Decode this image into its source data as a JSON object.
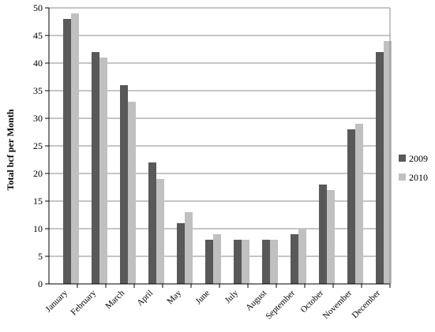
{
  "chart_data": {
    "type": "bar",
    "title": "",
    "xlabel": "",
    "ylabel": "Total bcf per Month",
    "ylim": [
      0,
      50
    ],
    "yticks": [
      0,
      5,
      10,
      15,
      20,
      25,
      30,
      35,
      40,
      45,
      50
    ],
    "grid": true,
    "legend_position": "right",
    "categories": [
      "January",
      "February",
      "March",
      "April",
      "May",
      "June",
      "July",
      "August",
      "September",
      "October",
      "November",
      "December"
    ],
    "series": [
      {
        "name": "2009",
        "color": "#595959",
        "values": [
          48,
          42,
          36,
          22,
          11,
          8,
          8,
          8,
          9,
          18,
          28,
          42
        ]
      },
      {
        "name": "2010",
        "color": "#c0c0c0",
        "values": [
          49,
          41,
          33,
          19,
          13,
          9,
          8,
          8,
          10,
          17,
          29,
          44
        ]
      }
    ]
  }
}
